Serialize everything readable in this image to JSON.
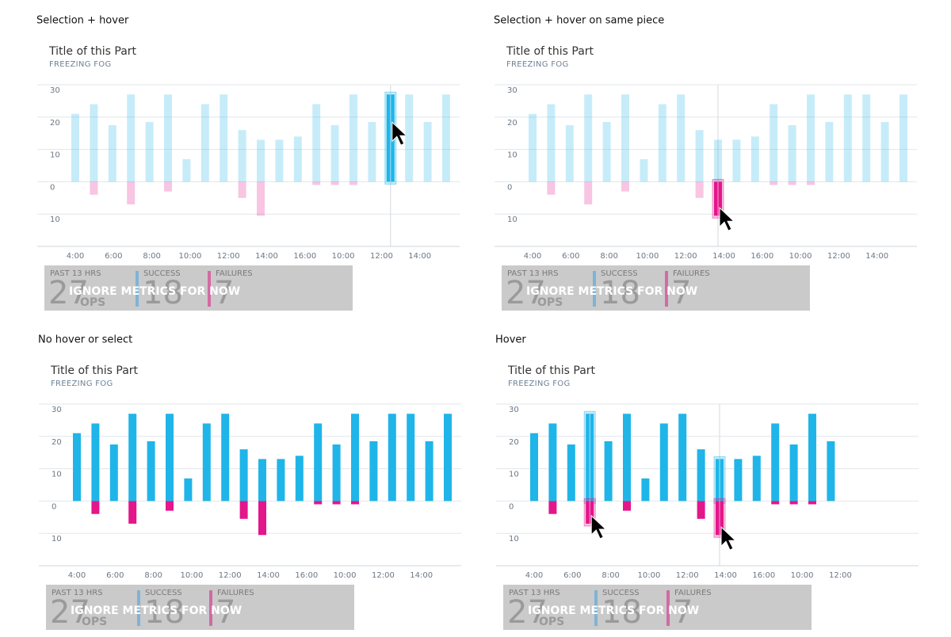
{
  "panels": [
    {
      "caption": "Selection + hover",
      "title": "Title of this Part",
      "subtitle": "FREEZING FOG",
      "chart": {
        "type": "bar",
        "dimmed": true,
        "highlight": [
          {
            "series": 0,
            "index": 17
          }
        ],
        "ylim": [
          -20,
          30
        ],
        "yticks": [
          30,
          20,
          10,
          0,
          {
            "value": -10,
            "label": "10"
          }
        ],
        "xtick_labels": [
          "4:00",
          "6:00",
          "8:00",
          "10:00",
          "12:00",
          "14:00",
          "16:00",
          "10:00",
          "12:00",
          "14:00"
        ],
        "series": [
          {
            "color": "#1fb5e9",
            "values": [
              21,
              24,
              17.5,
              27,
              18.5,
              27,
              7,
              24,
              27,
              16,
              13,
              13,
              14,
              24,
              17.5,
              27,
              18.5,
              27,
              27,
              18.5,
              27
            ]
          },
          {
            "color": "#e3168a",
            "values": [
              null,
              -4,
              null,
              -7,
              null,
              -3,
              null,
              null,
              null,
              -5,
              -10.5,
              null,
              null,
              -1,
              -1,
              -1,
              null,
              null,
              null,
              null,
              null
            ]
          }
        ]
      },
      "metrics": {
        "period": "PAST 13 HRS",
        "total": "27",
        "unit": "OPS",
        "success_label": "SUCCESS",
        "success": "18",
        "failures_label": "FAILURES",
        "failures": "7",
        "overlay": "IGNORE METRICS FOR NOW"
      }
    },
    {
      "caption": "Selection + hover on same piece",
      "title": "Title of this Part",
      "subtitle": "FREEZING FOG",
      "chart": {
        "type": "bar",
        "dimmed": true,
        "highlight": [
          {
            "series": 1,
            "index": 10
          }
        ],
        "ylim": [
          -20,
          30
        ],
        "yticks": [
          30,
          20,
          10,
          0,
          {
            "value": -10,
            "label": "10"
          }
        ],
        "xtick_labels": [
          "4:00",
          "6:00",
          "8:00",
          "10:00",
          "12:00",
          "14:00",
          "16:00",
          "10:00",
          "12:00",
          "14:00"
        ],
        "series": [
          {
            "color": "#1fb5e9",
            "values": [
              21,
              24,
              17.5,
              27,
              18.5,
              27,
              7,
              24,
              27,
              16,
              13,
              13,
              14,
              24,
              17.5,
              27,
              18.5,
              27,
              27,
              18.5,
              27
            ]
          },
          {
            "color": "#e3168a",
            "values": [
              null,
              -4,
              null,
              -7,
              null,
              -3,
              null,
              null,
              null,
              -5,
              -10.5,
              null,
              null,
              -1,
              -1,
              -1,
              null,
              null,
              null,
              null,
              null
            ]
          }
        ]
      },
      "metrics": {
        "period": "PAST 13 HRS",
        "total": "27",
        "unit": "OPS",
        "success_label": "SUCCESS",
        "success": "18",
        "failures_label": "FAILURES",
        "failures": "7",
        "overlay": "IGNORE METRICS FOR NOW"
      }
    },
    {
      "caption": "No hover or select",
      "title": "Title of this Part",
      "subtitle": "FREEZING FOG",
      "chart": {
        "type": "bar",
        "dimmed": false,
        "highlight": [],
        "ylim": [
          -20,
          30
        ],
        "yticks": [
          30,
          20,
          10,
          0,
          {
            "value": -10,
            "label": "10"
          }
        ],
        "xtick_labels": [
          "4:00",
          "6:00",
          "8:00",
          "10:00",
          "12:00",
          "14:00",
          "16:00",
          "10:00",
          "12:00",
          "14:00"
        ],
        "series": [
          {
            "color": "#1fb5e9",
            "values": [
              21,
              24,
              17.5,
              27,
              18.5,
              27,
              7,
              24,
              27,
              16,
              13,
              13,
              14,
              24,
              17.5,
              27,
              18.5,
              27,
              27,
              18.5,
              27
            ]
          },
          {
            "color": "#e3168a",
            "values": [
              null,
              -4,
              null,
              -7,
              null,
              -3,
              null,
              null,
              null,
              -5.5,
              -10.5,
              null,
              null,
              -1,
              -1,
              -1,
              null,
              null,
              null,
              null,
              null
            ]
          }
        ]
      },
      "metrics": {
        "period": "PAST 13 HRS",
        "total": "27",
        "unit": "OPS",
        "success_label": "SUCCESS",
        "success": "18",
        "failures_label": "FAILURES",
        "failures": "7",
        "overlay": "IGNORE METRICS FOR NOW"
      }
    },
    {
      "caption": "Hover",
      "title": "Title of this Part",
      "subtitle": "FREEZING FOG",
      "chart": {
        "type": "bar",
        "dimmed": false,
        "highlight": [
          {
            "series": 0,
            "index": 3
          },
          {
            "series": 1,
            "index": 3
          },
          {
            "series": 0,
            "index": 10
          },
          {
            "series": 1,
            "index": 10
          }
        ],
        "ylim": [
          -20,
          30
        ],
        "yticks": [
          30,
          20,
          10,
          0,
          {
            "value": -10,
            "label": "10"
          }
        ],
        "xtick_labels": [
          "4:00",
          "6:00",
          "8:00",
          "10:00",
          "12:00",
          "14:00",
          "16:00",
          "10:00",
          "12:00"
        ],
        "series": [
          {
            "color": "#1fb5e9",
            "values": [
              21,
              24,
              17.5,
              27,
              18.5,
              27,
              7,
              24,
              27,
              16,
              13,
              13,
              14,
              24,
              17.5,
              27,
              18.5
            ]
          },
          {
            "color": "#e3168a",
            "values": [
              null,
              -4,
              null,
              -7,
              null,
              -3,
              null,
              null,
              null,
              -5.5,
              -10.5,
              null,
              null,
              -1,
              -1,
              -1,
              null
            ]
          }
        ]
      },
      "metrics": {
        "period": "PAST 13 HRS",
        "total": "27",
        "unit": "OPS",
        "success_label": "SUCCESS",
        "success": "18",
        "failures_label": "FAILURES",
        "failures": "7",
        "overlay": "IGNORE METRICS FOR NOW"
      }
    }
  ]
}
